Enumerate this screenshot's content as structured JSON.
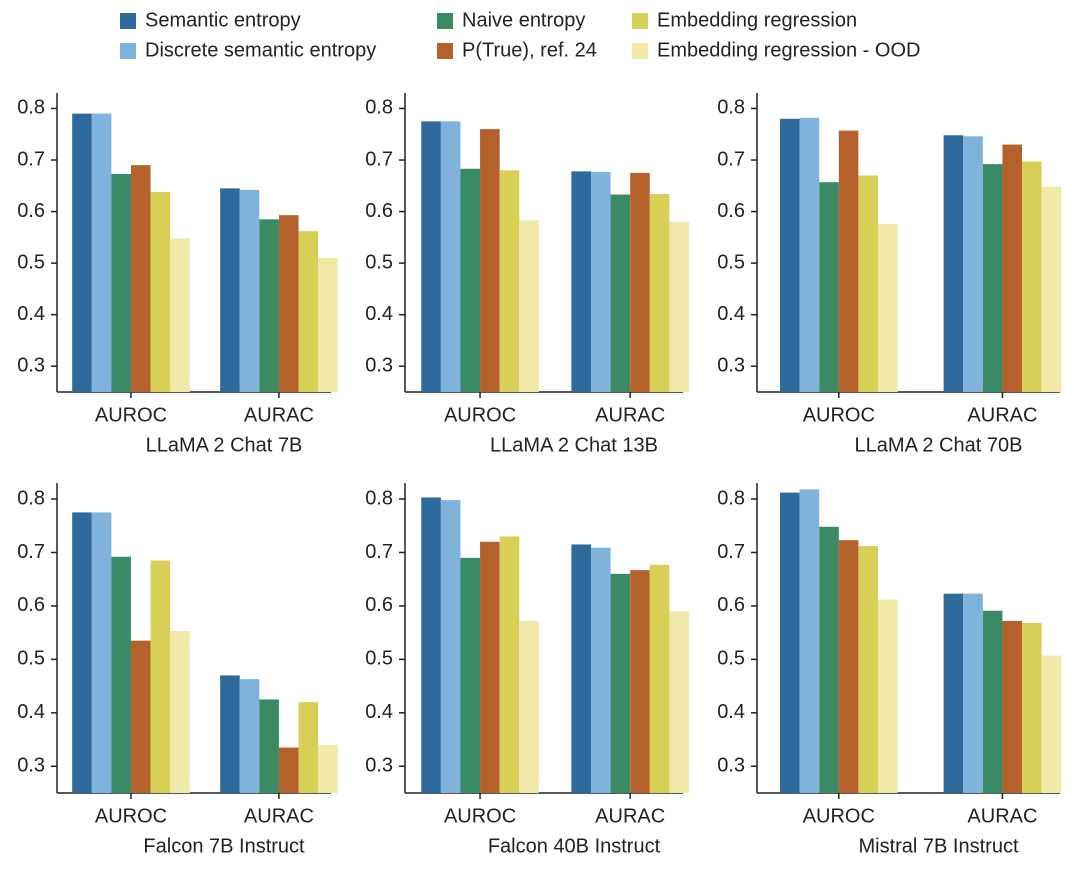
{
  "chart_data": [
    {
      "type": "bar",
      "xlabel": "LLaMA 2 Chat 7B",
      "categories": [
        "AUROC",
        "AURAC"
      ],
      "ylim": [
        0.25,
        0.83
      ],
      "yticks": [
        0.3,
        0.4,
        0.5,
        0.6,
        0.7,
        0.8
      ],
      "series": [
        {
          "name": "Semantic entropy",
          "color": "#2f6a9c",
          "values": [
            0.79,
            0.645
          ]
        },
        {
          "name": "Discrete semantic entropy",
          "color": "#80b3dc",
          "values": [
            0.79,
            0.642
          ]
        },
        {
          "name": "Naive entropy",
          "color": "#3b8a66",
          "values": [
            0.673,
            0.585
          ]
        },
        {
          "name": "P(True), ref. 24",
          "color": "#b5612b",
          "values": [
            0.69,
            0.593
          ]
        },
        {
          "name": "Embedding regression",
          "color": "#d8cf57",
          "values": [
            0.638,
            0.562
          ]
        },
        {
          "name": "Embedding regression - OOD",
          "color": "#f1e9a8",
          "values": [
            0.548,
            0.51
          ]
        }
      ]
    },
    {
      "type": "bar",
      "xlabel": "LLaMA 2 Chat 13B",
      "categories": [
        "AUROC",
        "AURAC"
      ],
      "ylim": [
        0.25,
        0.83
      ],
      "yticks": [
        0.3,
        0.4,
        0.5,
        0.6,
        0.7,
        0.8
      ],
      "series": [
        {
          "color": "#2f6a9c",
          "values": [
            0.775,
            0.678
          ]
        },
        {
          "color": "#80b3dc",
          "values": [
            0.775,
            0.677
          ]
        },
        {
          "color": "#3b8a66",
          "values": [
            0.683,
            0.633
          ]
        },
        {
          "color": "#b5612b",
          "values": [
            0.76,
            0.675
          ]
        },
        {
          "color": "#d8cf57",
          "values": [
            0.68,
            0.634
          ]
        },
        {
          "color": "#f1e9a8",
          "values": [
            0.583,
            0.58
          ]
        }
      ]
    },
    {
      "type": "bar",
      "xlabel": "LLaMA 2 Chat 70B",
      "categories": [
        "AUROC",
        "AURAC"
      ],
      "ylim": [
        0.25,
        0.83
      ],
      "yticks": [
        0.3,
        0.4,
        0.5,
        0.6,
        0.7,
        0.8
      ],
      "series": [
        {
          "color": "#2f6a9c",
          "values": [
            0.78,
            0.748
          ]
        },
        {
          "color": "#80b3dc",
          "values": [
            0.782,
            0.746
          ]
        },
        {
          "color": "#3b8a66",
          "values": [
            0.657,
            0.692
          ]
        },
        {
          "color": "#b5612b",
          "values": [
            0.757,
            0.73
          ]
        },
        {
          "color": "#d8cf57",
          "values": [
            0.67,
            0.697
          ]
        },
        {
          "color": "#f1e9a8",
          "values": [
            0.576,
            0.648
          ]
        }
      ]
    },
    {
      "type": "bar",
      "xlabel": "Falcon 7B Instruct",
      "categories": [
        "AUROC",
        "AURAC"
      ],
      "ylim": [
        0.25,
        0.83
      ],
      "yticks": [
        0.3,
        0.4,
        0.5,
        0.6,
        0.7,
        0.8
      ],
      "series": [
        {
          "color": "#2f6a9c",
          "values": [
            0.775,
            0.47
          ]
        },
        {
          "color": "#80b3dc",
          "values": [
            0.775,
            0.463
          ]
        },
        {
          "color": "#3b8a66",
          "values": [
            0.692,
            0.425
          ]
        },
        {
          "color": "#b5612b",
          "values": [
            0.535,
            0.335
          ]
        },
        {
          "color": "#d8cf57",
          "values": [
            0.685,
            0.42
          ]
        },
        {
          "color": "#f1e9a8",
          "values": [
            0.553,
            0.34
          ]
        }
      ]
    },
    {
      "type": "bar",
      "xlabel": "Falcon 40B Instruct",
      "categories": [
        "AUROC",
        "AURAC"
      ],
      "ylim": [
        0.25,
        0.83
      ],
      "yticks": [
        0.3,
        0.4,
        0.5,
        0.6,
        0.7,
        0.8
      ],
      "series": [
        {
          "color": "#2f6a9c",
          "values": [
            0.803,
            0.715
          ]
        },
        {
          "color": "#80b3dc",
          "values": [
            0.798,
            0.709
          ]
        },
        {
          "color": "#3b8a66",
          "values": [
            0.69,
            0.66
          ]
        },
        {
          "color": "#b5612b",
          "values": [
            0.72,
            0.667
          ]
        },
        {
          "color": "#d8cf57",
          "values": [
            0.73,
            0.677
          ]
        },
        {
          "color": "#f1e9a8",
          "values": [
            0.572,
            0.59
          ]
        }
      ]
    },
    {
      "type": "bar",
      "xlabel": "Mistral 7B Instruct",
      "categories": [
        "AUROC",
        "AURAC"
      ],
      "ylim": [
        0.25,
        0.83
      ],
      "yticks": [
        0.3,
        0.4,
        0.5,
        0.6,
        0.7,
        0.8
      ],
      "series": [
        {
          "color": "#2f6a9c",
          "values": [
            0.812,
            0.623
          ]
        },
        {
          "color": "#80b3dc",
          "values": [
            0.818,
            0.623
          ]
        },
        {
          "color": "#3b8a66",
          "values": [
            0.748,
            0.591
          ]
        },
        {
          "color": "#b5612b",
          "values": [
            0.723,
            0.572
          ]
        },
        {
          "color": "#d8cf57",
          "values": [
            0.712,
            0.568
          ]
        },
        {
          "color": "#f1e9a8",
          "values": [
            0.612,
            0.507
          ]
        }
      ]
    }
  ]
}
